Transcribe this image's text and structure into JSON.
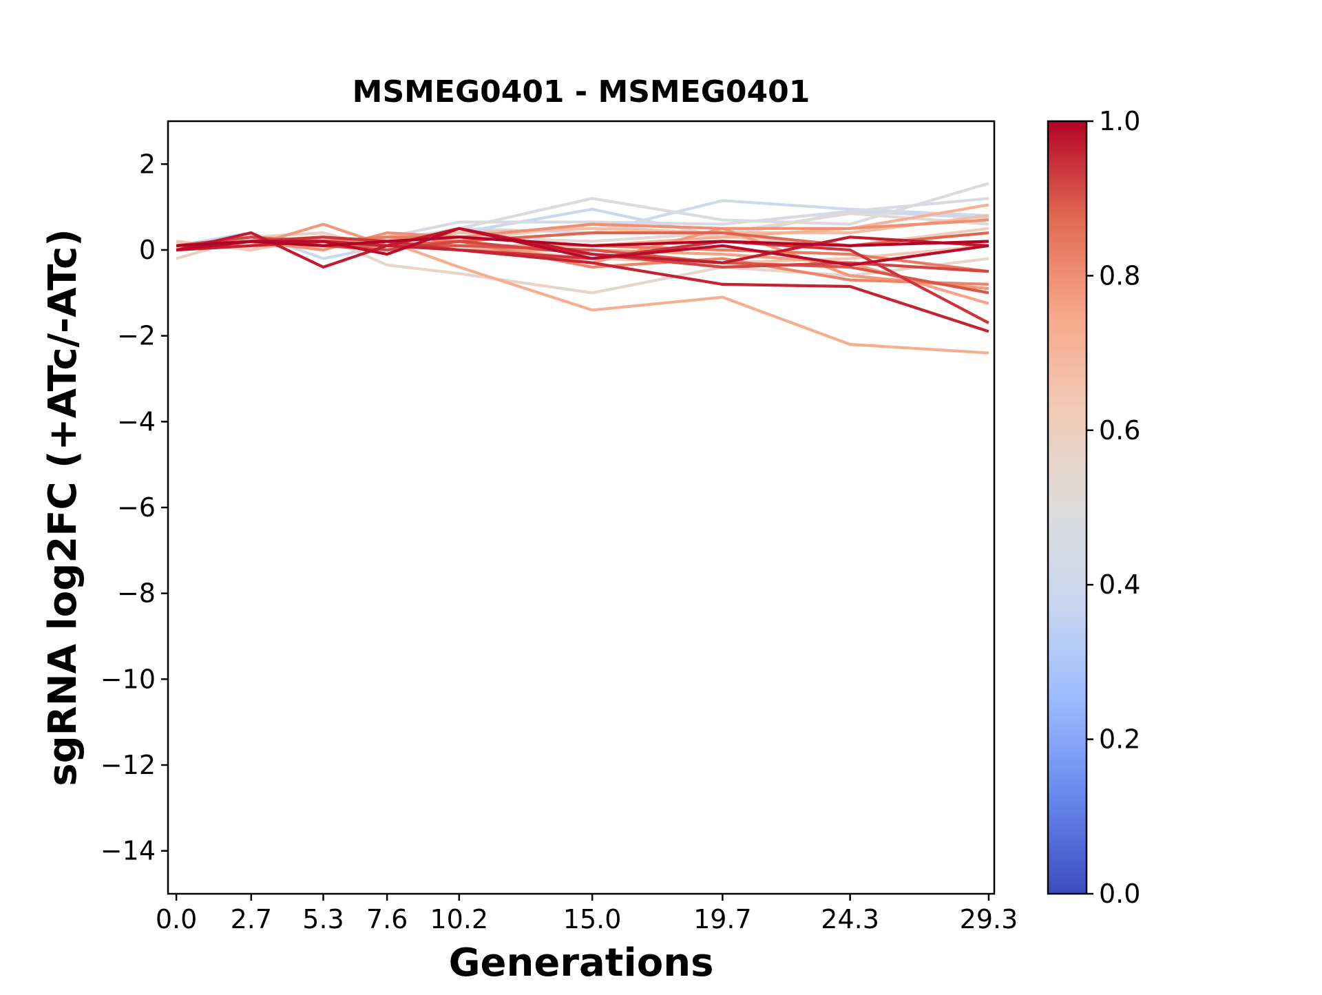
{
  "chart_data": {
    "type": "line",
    "title": "MSMEG0401 - MSMEG0401",
    "xlabel": "Generations",
    "ylabel": "sgRNA log2FC (+ATc/-ATc)",
    "x": [
      0.0,
      2.7,
      5.3,
      7.6,
      10.2,
      15.0,
      19.7,
      24.3,
      29.3
    ],
    "x_tick_labels": [
      "0.0",
      "2.7",
      "5.3",
      "7.6",
      "10.2",
      "15.0",
      "19.7",
      "24.3",
      "29.3"
    ],
    "xlim": [
      -0.3,
      29.5
    ],
    "ylim": [
      -15,
      3
    ],
    "y_ticks": [
      2,
      0,
      -2,
      -4,
      -6,
      -8,
      -10,
      -12,
      -14
    ],
    "y_tick_labels": [
      "2",
      "0",
      "−2",
      "−4",
      "−6",
      "−8",
      "−10",
      "−12",
      "−14"
    ],
    "grid": false,
    "colormap": "coolwarm",
    "colorbar": {
      "range": [
        0.0,
        1.0
      ],
      "ticks": [
        0.0,
        0.2,
        0.4,
        0.6,
        0.8,
        1.0
      ],
      "tick_labels": [
        "0.0",
        "0.2",
        "0.4",
        "0.6",
        "0.8",
        "1.0"
      ],
      "stops": [
        "#3b4cc0",
        "#6788ee",
        "#9abbff",
        "#c9d7f0",
        "#dddcdc",
        "#f2cbb7",
        "#f7a889",
        "#e26952",
        "#b40426"
      ]
    },
    "series": [
      {
        "c": 0.38,
        "values": [
          0.1,
          0.4,
          -0.2,
          0.1,
          0.4,
          0.95,
          0.3,
          0.9,
          0.75
        ]
      },
      {
        "c": 0.42,
        "values": [
          0.0,
          0.2,
          0.1,
          0.2,
          0.5,
          0.4,
          1.15,
          0.95,
          0.8
        ]
      },
      {
        "c": 0.46,
        "values": [
          0.0,
          0.1,
          0.1,
          0.3,
          0.65,
          0.65,
          0.6,
          0.9,
          1.2
        ]
      },
      {
        "c": 0.48,
        "values": [
          0.1,
          0.2,
          0.2,
          0.2,
          0.5,
          1.2,
          0.7,
          0.6,
          1.55
        ]
      },
      {
        "c": 0.52,
        "values": [
          0.0,
          0.1,
          0.1,
          0.3,
          0.3,
          0.2,
          0.4,
          0.85,
          0.6
        ]
      },
      {
        "c": 0.56,
        "values": [
          0.2,
          0.0,
          0.3,
          -0.35,
          -0.55,
          -1.0,
          -0.4,
          -0.6,
          -0.2
        ]
      },
      {
        "c": 0.6,
        "values": [
          -0.2,
          0.3,
          0.4,
          0.0,
          0.2,
          0.6,
          0.3,
          0.1,
          0.5
        ]
      },
      {
        "c": 0.64,
        "values": [
          0.2,
          0.0,
          0.3,
          0.2,
          0.1,
          -0.2,
          -0.3,
          -0.2,
          0.1
        ]
      },
      {
        "c": 0.68,
        "values": [
          0.0,
          0.2,
          0.1,
          0.3,
          0.4,
          0.5,
          0.4,
          0.4,
          0.8
        ]
      },
      {
        "c": 0.72,
        "values": [
          0.0,
          0.2,
          0.3,
          0.2,
          0.1,
          0.1,
          0.3,
          0.5,
          1.05
        ]
      },
      {
        "c": 0.76,
        "values": [
          0.0,
          0.1,
          0.1,
          0.1,
          0.0,
          0.0,
          -0.1,
          -0.3,
          -1.25
        ]
      },
      {
        "c": 0.73,
        "values": [
          0.1,
          0.1,
          0.3,
          0.2,
          -0.4,
          -1.4,
          -1.1,
          -2.2,
          -2.4
        ]
      },
      {
        "c": 0.78,
        "values": [
          0.0,
          0.1,
          0.6,
          0.1,
          0.2,
          -0.3,
          0.5,
          -0.6,
          -0.9
        ]
      },
      {
        "c": 0.8,
        "values": [
          0.1,
          0.2,
          0.0,
          0.4,
          0.3,
          0.6,
          0.5,
          0.5,
          0.7
        ]
      },
      {
        "c": 0.82,
        "values": [
          0.0,
          0.2,
          0.2,
          0.3,
          0.2,
          -0.4,
          -0.2,
          -0.7,
          -0.8
        ]
      },
      {
        "c": 0.84,
        "values": [
          0.1,
          0.3,
          0.2,
          0.3,
          0.3,
          0.1,
          0.0,
          -0.1,
          -0.5
        ]
      },
      {
        "c": 0.88,
        "values": [
          0.0,
          0.2,
          0.1,
          0.1,
          0.2,
          0.4,
          0.4,
          0.1,
          0.4
        ]
      },
      {
        "c": 0.9,
        "values": [
          0.0,
          0.2,
          0.2,
          0.1,
          0.1,
          0.0,
          -0.3,
          -0.4,
          -1.0
        ]
      },
      {
        "c": 0.92,
        "values": [
          0.1,
          0.3,
          0.1,
          0.0,
          0.2,
          -0.1,
          -0.4,
          -0.3,
          -0.5
        ]
      },
      {
        "c": 0.94,
        "values": [
          0.0,
          0.2,
          0.3,
          0.2,
          0.0,
          -0.2,
          0.2,
          0.0,
          -1.7
        ]
      },
      {
        "c": 0.96,
        "values": [
          0.0,
          0.1,
          0.2,
          0.1,
          0.0,
          -0.3,
          -0.8,
          -0.85,
          -1.9
        ]
      },
      {
        "c": 0.97,
        "values": [
          0.0,
          0.4,
          -0.4,
          0.1,
          0.5,
          -0.1,
          -0.3,
          0.3,
          0.1
        ]
      },
      {
        "c": 0.99,
        "values": [
          0.0,
          0.2,
          0.2,
          -0.1,
          0.5,
          -0.2,
          0.1,
          -0.35,
          0.1
        ]
      },
      {
        "c": 1.0,
        "values": [
          0.1,
          0.2,
          0.1,
          0.2,
          0.3,
          0.1,
          0.2,
          0.1,
          0.2
        ]
      }
    ]
  }
}
